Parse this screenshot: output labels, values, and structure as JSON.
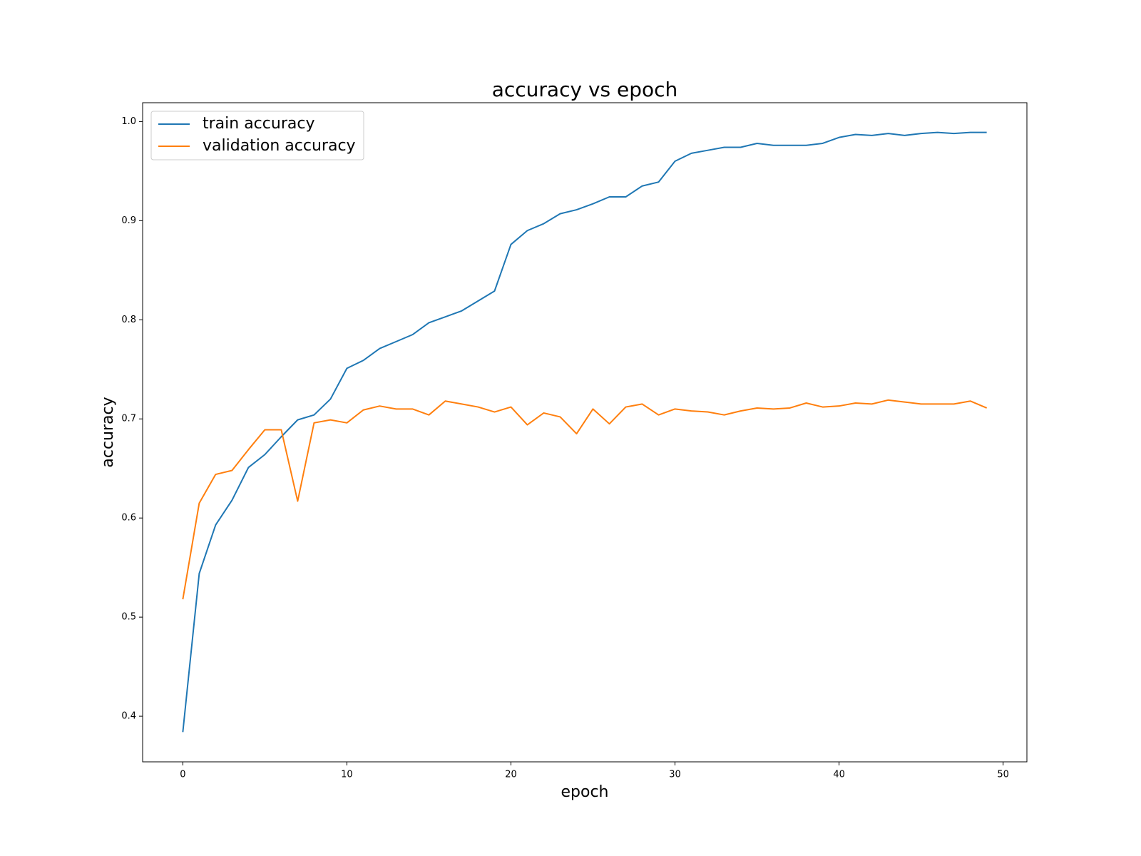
{
  "chart_data": {
    "type": "line",
    "title": "accuracy vs epoch",
    "x_label": "epoch",
    "y_label": "accuracy",
    "x": [
      0,
      1,
      2,
      3,
      4,
      5,
      6,
      7,
      8,
      9,
      10,
      11,
      12,
      13,
      14,
      15,
      16,
      17,
      18,
      19,
      20,
      21,
      22,
      23,
      24,
      25,
      26,
      27,
      28,
      29,
      30,
      31,
      32,
      33,
      34,
      35,
      36,
      37,
      38,
      39,
      40,
      41,
      42,
      43,
      44,
      45,
      46,
      47,
      48,
      49
    ],
    "series": [
      {
        "name": "train accuracy",
        "color": "#1f77b4",
        "values": [
          0.384,
          0.544,
          0.593,
          0.618,
          0.651,
          0.664,
          0.682,
          0.699,
          0.704,
          0.72,
          0.751,
          0.759,
          0.771,
          0.778,
          0.785,
          0.797,
          0.803,
          0.809,
          0.819,
          0.829,
          0.876,
          0.89,
          0.897,
          0.907,
          0.911,
          0.917,
          0.924,
          0.924,
          0.935,
          0.939,
          0.96,
          0.968,
          0.971,
          0.974,
          0.974,
          0.978,
          0.976,
          0.976,
          0.976,
          0.978,
          0.984,
          0.987,
          0.986,
          0.988,
          0.986,
          0.988,
          0.989,
          0.988,
          0.989,
          0.989
        ]
      },
      {
        "name": "validation accuracy",
        "color": "#ff7f0e",
        "values": [
          0.518,
          0.615,
          0.644,
          0.648,
          0.669,
          0.689,
          0.689,
          0.617,
          0.696,
          0.699,
          0.696,
          0.709,
          0.713,
          0.71,
          0.71,
          0.704,
          0.718,
          0.715,
          0.712,
          0.707,
          0.712,
          0.694,
          0.706,
          0.702,
          0.685,
          0.71,
          0.695,
          0.712,
          0.715,
          0.704,
          0.71,
          0.708,
          0.707,
          0.704,
          0.708,
          0.711,
          0.71,
          0.711,
          0.716,
          0.712,
          0.713,
          0.716,
          0.715,
          0.719,
          0.717,
          0.715,
          0.715,
          0.715,
          0.718,
          0.711
        ]
      }
    ],
    "xlim": [
      -2.45,
      51.45
    ],
    "xticks": [
      0,
      10,
      20,
      30,
      40,
      50
    ],
    "ylim": [
      0.354,
      1.019
    ],
    "yticks": [
      0.4,
      0.5,
      0.6,
      0.7,
      0.8,
      0.9,
      {
        "value": 1,
        "label": "1.0"
      }
    ],
    "legend": "upper left"
  }
}
